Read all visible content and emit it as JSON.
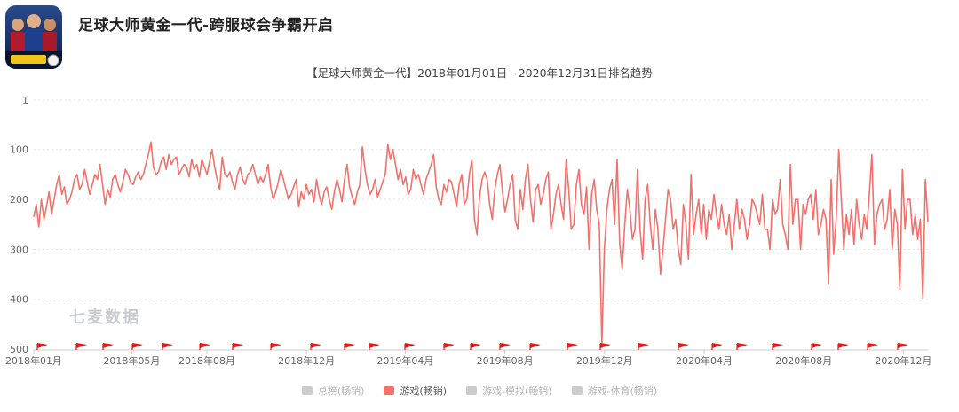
{
  "app": {
    "title": "足球大师黄金一代-跨服球会争霸开启",
    "icon": "football-game-app-icon"
  },
  "watermark": "七麦数据",
  "chart_data": {
    "type": "line",
    "title": "【足球大师黄金一代】2018年01月01日 - 2020年12月31日排名趋势",
    "y_ticks": [
      1,
      100,
      200,
      300,
      400,
      500
    ],
    "ylim": [
      500,
      1
    ],
    "y_inverted": true,
    "grid": "horizontal dotted",
    "x_ticks": [
      "2018年01月",
      "2018年05月",
      "2018年08月",
      "2018年12月",
      "2019年04月",
      "2019年08月",
      "2019年12月",
      "2020年04月",
      "2020年08月",
      "2020年12月"
    ],
    "x_range": [
      "2018-01-01",
      "2020-12-31"
    ],
    "colors": {
      "line": "#f2726b",
      "flag": "#e8181c",
      "axis": "#cccccc",
      "grid": "#e3e3e3"
    },
    "series": [
      {
        "name": "游戏(畅销)",
        "values": [
          235,
          210,
          255,
          200,
          240,
          215,
          185,
          230,
          200,
          170,
          150,
          190,
          175,
          210,
          200,
          185,
          160,
          150,
          180,
          170,
          140,
          165,
          190,
          170,
          150,
          160,
          130,
          170,
          210,
          180,
          195,
          160,
          150,
          170,
          185,
          165,
          140,
          150,
          165,
          170,
          155,
          145,
          160,
          150,
          130,
          110,
          85,
          135,
          150,
          145,
          125,
          115,
          140,
          110,
          130,
          120,
          115,
          150,
          140,
          130,
          135,
          155,
          120,
          140,
          130,
          155,
          120,
          135,
          150,
          125,
          100,
          135,
          160,
          180,
          115,
          150,
          155,
          145,
          165,
          180,
          150,
          135,
          160,
          170,
          150,
          145,
          130,
          150,
          170,
          155,
          165,
          150,
          130,
          175,
          200,
          185,
          165,
          140,
          160,
          180,
          200,
          190,
          175,
          160,
          215,
          185,
          200,
          170,
          190,
          180,
          205,
          160,
          190,
          210,
          185,
          175,
          200,
          220,
          185,
          160,
          180,
          205,
          160,
          130,
          175,
          195,
          210,
          185,
          170,
          95,
          140,
          170,
          190,
          180,
          160,
          195,
          180,
          165,
          150,
          90,
          120,
          100,
          130,
          160,
          140,
          170,
          155,
          190,
          180,
          140,
          160,
          150,
          170,
          190,
          160,
          145,
          130,
          110,
          175,
          200,
          210,
          170,
          185,
          160,
          165,
          190,
          215,
          170,
          150,
          210,
          200,
          150,
          120,
          240,
          270,
          195,
          160,
          145,
          160,
          210,
          240,
          180,
          150,
          130,
          185,
          225,
          200,
          170,
          150,
          240,
          260,
          180,
          220,
          160,
          130,
          200,
          245,
          180,
          170,
          210,
          190,
          160,
          145,
          260,
          230,
          190,
          170,
          210,
          240,
          120,
          180,
          260,
          250,
          170,
          140,
          210,
          230,
          175,
          300,
          190,
          160,
          220,
          250,
          490,
          300,
          220,
          180,
          160,
          250,
          120,
          290,
          340,
          250,
          180,
          220,
          280,
          260,
          140,
          260,
          320,
          200,
          170,
          250,
          300,
          220,
          260,
          350,
          300,
          240,
          180,
          200,
          260,
          240,
          300,
          330,
          210,
          250,
          320,
          150,
          270,
          230,
          200,
          270,
          210,
          280,
          220,
          240,
          190,
          230,
          260,
          210,
          250,
          270,
          230,
          300,
          250,
          200,
          260,
          220,
          240,
          280,
          250,
          200,
          210,
          230,
          250,
          190,
          260,
          260,
          300,
          200,
          230,
          220,
          160,
          250,
          270,
          300,
          130,
          250,
          200,
          200,
          300,
          210,
          230,
          200,
          190,
          240,
          180,
          270,
          250,
          220,
          240,
          370,
          160,
          310,
          240,
          100,
          200,
          300,
          230,
          270,
          220,
          290,
          200,
          250,
          280,
          230,
          260,
          190,
          110,
          290,
          230,
          210,
          200,
          260,
          240,
          180,
          300,
          220,
          250,
          380,
          140,
          260,
          200,
          200,
          270,
          230,
          280,
          240,
          400,
          160,
          245
        ]
      }
    ],
    "legend": [
      {
        "label": "总榜(畅销)",
        "color": "#cccccc",
        "active": false
      },
      {
        "label": "游戏(畅销)",
        "color": "#f2726b",
        "active": true
      },
      {
        "label": "游戏-模拟(畅销)",
        "color": "#cccccc",
        "active": false
      },
      {
        "label": "游戏-体育(畅销)",
        "color": "#cccccc",
        "active": false
      }
    ]
  }
}
